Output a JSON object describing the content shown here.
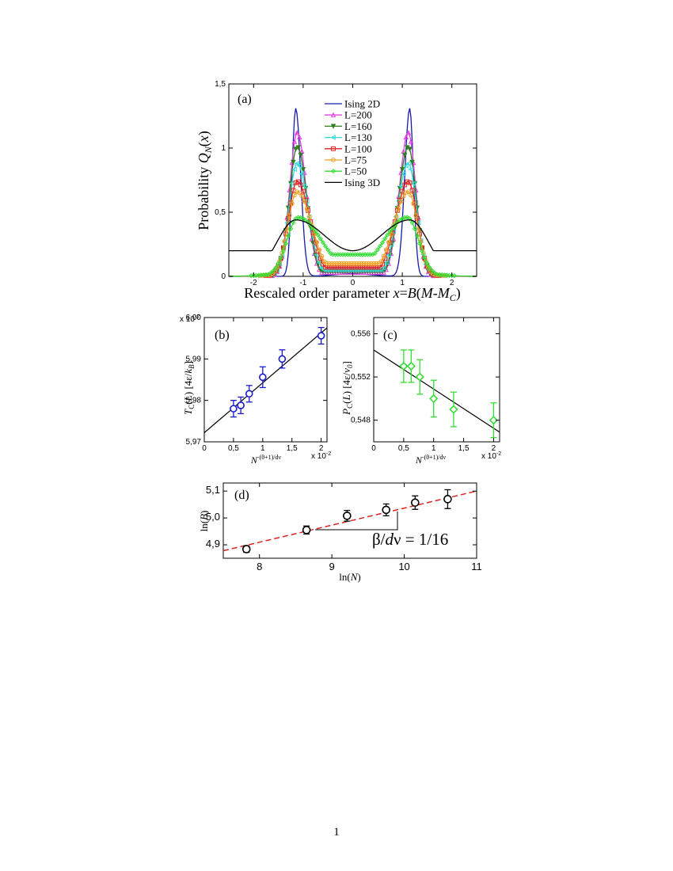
{
  "page": {
    "number": "1"
  },
  "chart_data": [
    {
      "panel": "(a)",
      "type": "line",
      "xlabel": "Rescaled order parameter x=B(M-M_C)",
      "xlabel_parts": [
        "Rescaled order parameter ",
        "x",
        "=",
        "B",
        "(",
        "M",
        "-",
        "M",
        "C",
        ")"
      ],
      "ylabel": "Probability Q_N(x)",
      "ylabel_parts": [
        "Probability ",
        "Q",
        "N",
        "(",
        "x",
        ")"
      ],
      "xlim": [
        -2.5,
        2.5
      ],
      "ylim": [
        0,
        1.5
      ],
      "xticks": [
        -2,
        -1,
        0,
        1,
        2
      ],
      "xtick_labels": [
        "-2",
        "-1",
        "0",
        "1",
        "2"
      ],
      "yticks": [
        0,
        0.5,
        1,
        1.5
      ],
      "ytick_labels": [
        "0",
        "0,5",
        "1",
        "1,5"
      ],
      "legend_position": "top-center",
      "series": [
        {
          "name": "Ising 2D",
          "color": "#1a1aaa",
          "marker": "none",
          "peak_x": 1.15,
          "peak_y": 1.31,
          "center_y": 0.0
        },
        {
          "name": "L=200",
          "color": "#e040e0",
          "marker": "triangle-up",
          "peak_x": 1.12,
          "peak_y": 1.12,
          "center_y": 0.03
        },
        {
          "name": "L=160",
          "color": "#2e7d1e",
          "marker": "triangle-down",
          "peak_x": 1.12,
          "peak_y": 1.01,
          "center_y": 0.04
        },
        {
          "name": "L=130",
          "color": "#33dddd",
          "marker": "triangle-left",
          "peak_x": 1.12,
          "peak_y": 0.88,
          "center_y": 0.05
        },
        {
          "name": "L=100",
          "color": "#dd2222",
          "marker": "square",
          "peak_x": 1.12,
          "peak_y": 0.74,
          "center_y": 0.07
        },
        {
          "name": "L=75",
          "color": "#f0a020",
          "marker": "circle",
          "peak_x": 1.12,
          "peak_y": 0.66,
          "center_y": 0.1
        },
        {
          "name": "L=50",
          "color": "#33dd33",
          "marker": "diamond",
          "peak_x": 1.1,
          "peak_y": 0.46,
          "center_y": 0.17
        },
        {
          "name": "Ising 3D",
          "color": "#000000",
          "marker": "none",
          "peak_x": 1.15,
          "peak_y": 0.44,
          "center_y": 0.2
        }
      ]
    },
    {
      "panel": "(b)",
      "type": "scatter",
      "ylabel_parts": [
        "T",
        "C",
        "(",
        "L",
        ")  [4ε/",
        "k",
        "B",
        "]"
      ],
      "xlabel_parts": [
        "N",
        "-(θ+1)/dν"
      ],
      "x_multiplier": "x 10",
      "x_multiplier_exp": "-2",
      "y_multiplier": "x 10",
      "y_multiplier_exp": "-2",
      "xlim": [
        0,
        2.1
      ],
      "ylim": [
        5.97,
        6.0
      ],
      "xticks": [
        0,
        0.5,
        1,
        1.5,
        2
      ],
      "xtick_labels": [
        "0",
        "0,5",
        "1",
        "1,5",
        "2"
      ],
      "yticks": [
        5.97,
        5.98,
        5.99,
        6.0
      ],
      "ytick_labels": [
        "5,97",
        "5,98",
        "5,99",
        "6,00"
      ],
      "color": "#1a1acc",
      "x": [
        0.5,
        0.625,
        0.769,
        1.0,
        1.333,
        2.0
      ],
      "y": [
        5.978,
        5.9788,
        5.9816,
        5.9856,
        5.99,
        5.9956
      ],
      "yerr": [
        0.002,
        0.002,
        0.002,
        0.0025,
        0.0022,
        0.002
      ],
      "fit": {
        "x": [
          0,
          2.1
        ],
        "y": [
          5.9722,
          5.9975
        ]
      }
    },
    {
      "panel": "(c)",
      "type": "scatter",
      "ylabel_parts": [
        "P",
        "C",
        "(",
        "L",
        ")  [4ε/",
        "v",
        "0",
        "]"
      ],
      "xlabel_parts": [
        "N",
        "-(θ+1)/dν"
      ],
      "x_multiplier": "x 10",
      "x_multiplier_exp": "-2",
      "xlim": [
        0,
        2.1
      ],
      "ylim": [
        0.546,
        0.5575
      ],
      "xticks": [
        0,
        0.5,
        1,
        1.5,
        2
      ],
      "xtick_labels": [
        "0",
        "0,5",
        "1",
        "1,5",
        "2"
      ],
      "yticks": [
        0.548,
        0.552,
        0.556
      ],
      "ytick_labels": [
        "0,548",
        "0,552",
        "0,556"
      ],
      "color": "#33dd33",
      "x": [
        0.5,
        0.625,
        0.769,
        1.0,
        1.333,
        2.0
      ],
      "y": [
        0.553,
        0.553,
        0.552,
        0.55,
        0.549,
        0.548
      ],
      "yerr": [
        0.0015,
        0.0015,
        0.0016,
        0.0017,
        0.0016,
        0.0016
      ],
      "fit": {
        "x": [
          0,
          2.1
        ],
        "y": [
          0.5545,
          0.5469
        ]
      }
    },
    {
      "panel": "(d)",
      "type": "scatter",
      "ylabel_parts": [
        "ln(",
        "B",
        ")"
      ],
      "xlabel_parts": [
        "ln(",
        "N",
        ")"
      ],
      "annotation": "β/dν = 1/16",
      "annotation_parts": [
        "β/",
        "d",
        "ν = 1/16"
      ],
      "xlim": [
        7.5,
        11
      ],
      "ylim": [
        4.85,
        5.13
      ],
      "xticks": [
        8,
        9,
        10,
        11
      ],
      "xtick_labels": [
        "8",
        "9",
        "10",
        "11"
      ],
      "yticks": [
        4.9,
        5.0,
        5.1
      ],
      "ytick_labels": [
        "4,9",
        "5,0",
        "5,1"
      ],
      "color": "#000000",
      "fit_color": "#dd2222",
      "x": [
        7.82,
        8.65,
        9.21,
        9.75,
        10.15,
        10.6
      ],
      "y": [
        4.884,
        4.955,
        5.008,
        5.03,
        5.057,
        5.07
      ],
      "yerr": [
        0.012,
        0.015,
        0.02,
        0.022,
        0.025,
        0.035
      ],
      "fit": {
        "x": [
          7.5,
          11
        ],
        "y": [
          4.878,
          5.1
        ]
      }
    }
  ]
}
